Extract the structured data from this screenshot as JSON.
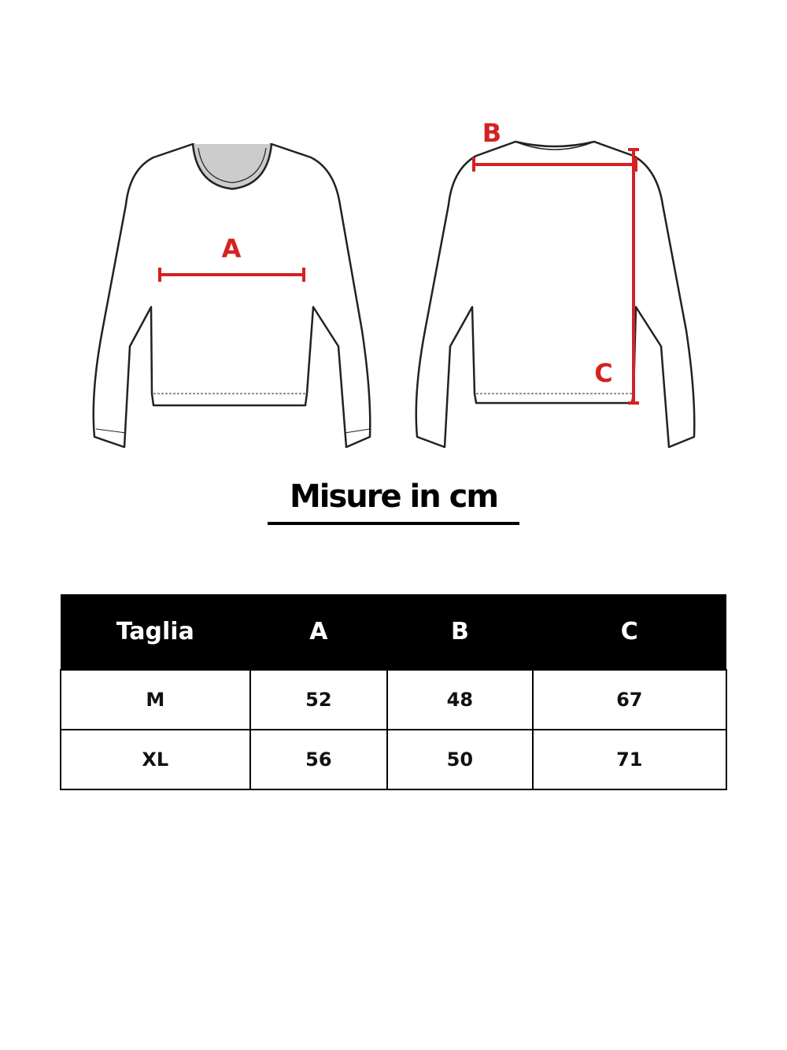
{
  "diagram": {
    "labels": {
      "a": "A",
      "b": "B",
      "c": "C"
    },
    "accent_color": "#d42222"
  },
  "title": "Misure in cm",
  "table": {
    "headers": [
      "Taglia",
      "A",
      "B",
      "C"
    ],
    "rows": [
      [
        "M",
        "52",
        "48",
        "67"
      ],
      [
        "XL",
        "56",
        "50",
        "71"
      ]
    ]
  }
}
